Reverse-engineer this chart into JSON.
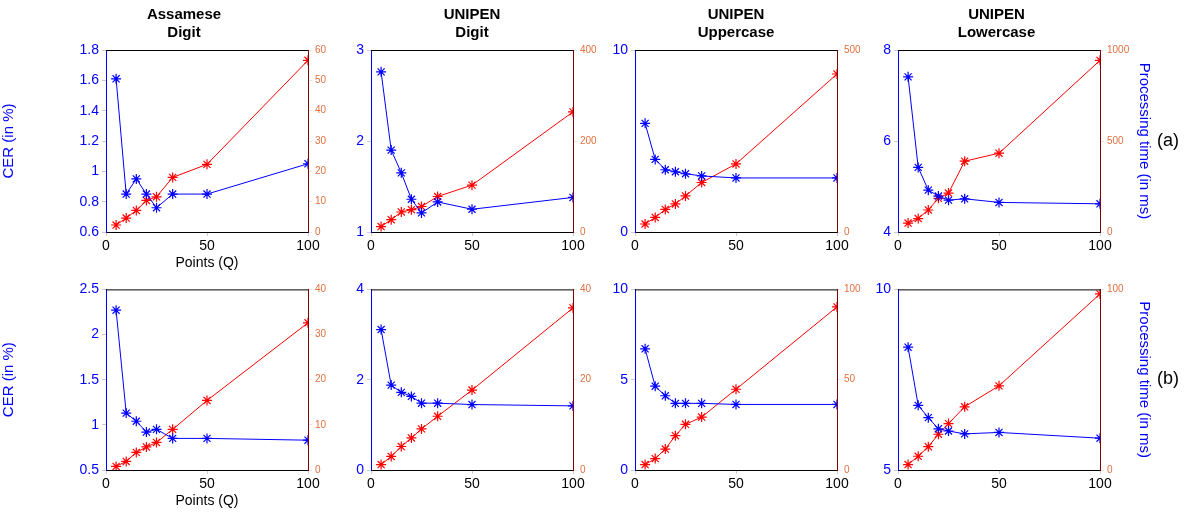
{
  "chart_data": [
    {
      "type": "line",
      "title": "Assamese\nDigit",
      "xlabel": "Points (Q)",
      "ylabel": "CER (in %)",
      "marker": "cross",
      "x": [
        5,
        10,
        15,
        20,
        25,
        33,
        50,
        100
      ],
      "xlim": [
        0,
        100
      ],
      "xticks": [
        0,
        50,
        100
      ],
      "ylim": [
        0.6,
        1.8
      ],
      "yticks": [
        0.6,
        0.8,
        1,
        1.2,
        1.4,
        1.6,
        1.8
      ],
      "y2lim": [
        0,
        60
      ],
      "y2ticks": [
        0,
        10,
        20,
        30,
        40,
        50,
        60
      ],
      "series": [
        {
          "color": "#0000ff",
          "values": [
            1.61,
            0.85,
            0.95,
            0.85,
            0.76,
            0.85,
            0.85,
            1.05
          ]
        },
        {
          "color": "#ff0000",
          "axis": "y2",
          "values": [
            2.3,
            4.6,
            7.1,
            10.4,
            11.6,
            18,
            22.3,
            56.6
          ]
        }
      ]
    },
    {
      "type": "line",
      "title": "UNIPEN\nDigit",
      "marker": "cross",
      "x": [
        5,
        10,
        15,
        20,
        25,
        33,
        50,
        100
      ],
      "xlim": [
        0,
        100
      ],
      "xticks": [
        0,
        50,
        100
      ],
      "ylim": [
        1,
        3
      ],
      "yticks": [
        1,
        2,
        3
      ],
      "y2lim": [
        0,
        400
      ],
      "y2ticks": [
        0,
        200,
        400
      ],
      "series": [
        {
          "color": "#0000ff",
          "values": [
            2.76,
            1.9,
            1.65,
            1.36,
            1.21,
            1.33,
            1.25,
            1.38
          ]
        },
        {
          "color": "#ff0000",
          "axis": "y2",
          "values": [
            12,
            27,
            44,
            49,
            56,
            78,
            103,
            264
          ]
        }
      ]
    },
    {
      "type": "line",
      "title": "UNIPEN\nUppercase",
      "marker": "cross",
      "x": [
        5,
        10,
        15,
        20,
        25,
        33,
        50,
        100
      ],
      "xlim": [
        0,
        100
      ],
      "xticks": [
        0,
        50,
        100
      ],
      "ylim": [
        0,
        10
      ],
      "yticks": [
        0,
        10
      ],
      "y2lim": [
        0,
        500
      ],
      "y2ticks": [
        0,
        500
      ],
      "series": [
        {
          "color": "#0000ff",
          "values": [
            5.97,
            3.99,
            3.42,
            3.31,
            3.2,
            3.08,
            2.97,
            2.97
          ]
        },
        {
          "color": "#ff0000",
          "axis": "y2",
          "values": [
            22,
            40,
            62,
            77,
            99,
            136,
            187,
            434
          ]
        }
      ]
    },
    {
      "type": "line",
      "title": "UNIPEN\nLowercase",
      "y2label": "Processing time (in ms)",
      "annotations": [
        "(a)"
      ],
      "marker": "cross",
      "x": [
        5,
        10,
        15,
        20,
        25,
        33,
        50,
        100
      ],
      "xlim": [
        0,
        100
      ],
      "xticks": [
        0,
        50,
        100
      ],
      "ylim": [
        4,
        8
      ],
      "yticks": [
        4,
        6,
        8
      ],
      "y2lim": [
        0,
        1000
      ],
      "y2ticks": [
        0,
        500,
        1000
      ],
      "series": [
        {
          "color": "#0000ff",
          "values": [
            7.41,
            5.42,
            4.92,
            4.79,
            4.7,
            4.73,
            4.65,
            4.62
          ]
        },
        {
          "color": "#ff0000",
          "axis": "y2",
          "values": [
            49,
            74,
            121,
            185,
            214,
            389,
            433,
            943
          ]
        }
      ]
    },
    {
      "type": "line",
      "xlabel": "Points (Q)",
      "ylabel": "CER (in %)",
      "marker": "cross",
      "x": [
        5,
        10,
        15,
        20,
        25,
        33,
        50,
        100
      ],
      "xlim": [
        0,
        100
      ],
      "xticks": [
        0,
        50,
        100
      ],
      "ylim": [
        0.5,
        2.5
      ],
      "yticks": [
        0.5,
        1,
        1.5,
        2,
        2.5
      ],
      "y2lim": [
        0,
        40
      ],
      "y2ticks": [
        0,
        10,
        20,
        30,
        40
      ],
      "series": [
        {
          "color": "#0000ff",
          "values": [
            2.27,
            1.13,
            1.04,
            0.92,
            0.95,
            0.85,
            0.85,
            0.83
          ]
        },
        {
          "color": "#ff0000",
          "axis": "y2",
          "values": [
            0.8,
            1.9,
            3.9,
            5.1,
            6.1,
            9,
            15.4,
            32.6
          ]
        }
      ]
    },
    {
      "type": "line",
      "marker": "cross",
      "x": [
        5,
        10,
        15,
        20,
        25,
        33,
        50,
        100
      ],
      "xlim": [
        0,
        100
      ],
      "xticks": [
        0,
        50,
        100
      ],
      "ylim": [
        0,
        4
      ],
      "yticks": [
        0,
        2,
        4
      ],
      "y2lim": [
        0,
        40
      ],
      "y2ticks": [
        0,
        20,
        40
      ],
      "series": [
        {
          "color": "#0000ff",
          "values": [
            3.11,
            1.88,
            1.72,
            1.63,
            1.48,
            1.48,
            1.45,
            1.42
          ]
        },
        {
          "color": "#ff0000",
          "axis": "y2",
          "values": [
            1.2,
            3,
            5.2,
            7.1,
            9.1,
            11.9,
            17.7,
            35.9
          ]
        }
      ]
    },
    {
      "type": "line",
      "marker": "cross",
      "x": [
        5,
        10,
        15,
        20,
        25,
        33,
        50,
        100
      ],
      "xlim": [
        0,
        100
      ],
      "xticks": [
        0,
        50,
        100
      ],
      "ylim": [
        0,
        10
      ],
      "yticks": [
        0,
        5,
        10
      ],
      "y2lim": [
        0,
        100
      ],
      "y2ticks": [
        0,
        50,
        100
      ],
      "series": [
        {
          "color": "#0000ff",
          "values": [
            6.71,
            4.64,
            4.11,
            3.69,
            3.69,
            3.69,
            3.63,
            3.63
          ]
        },
        {
          "color": "#ff0000",
          "axis": "y2",
          "values": [
            3,
            6.3,
            11.6,
            19,
            25.3,
            29.3,
            44.7,
            90.3
          ]
        }
      ]
    },
    {
      "type": "line",
      "y2label": "Processing time (in ms)",
      "annotations": [
        "(b)"
      ],
      "marker": "cross",
      "x": [
        5,
        10,
        15,
        20,
        25,
        33,
        50,
        100
      ],
      "xlim": [
        0,
        100
      ],
      "xticks": [
        0,
        50,
        100
      ],
      "ylim": [
        5,
        10
      ],
      "yticks": [
        5,
        10
      ],
      "y2lim": [
        0,
        100
      ],
      "y2ticks": [
        0,
        100
      ],
      "series": [
        {
          "color": "#0000ff",
          "values": [
            8.4,
            6.79,
            6.45,
            6.14,
            6.08,
            6,
            6.04,
            5.88
          ]
        },
        {
          "color": "#ff0000",
          "axis": "y2",
          "values": [
            3,
            7.6,
            12.9,
            19.8,
            25.7,
            35,
            46.6,
            97.5
          ]
        }
      ]
    }
  ]
}
